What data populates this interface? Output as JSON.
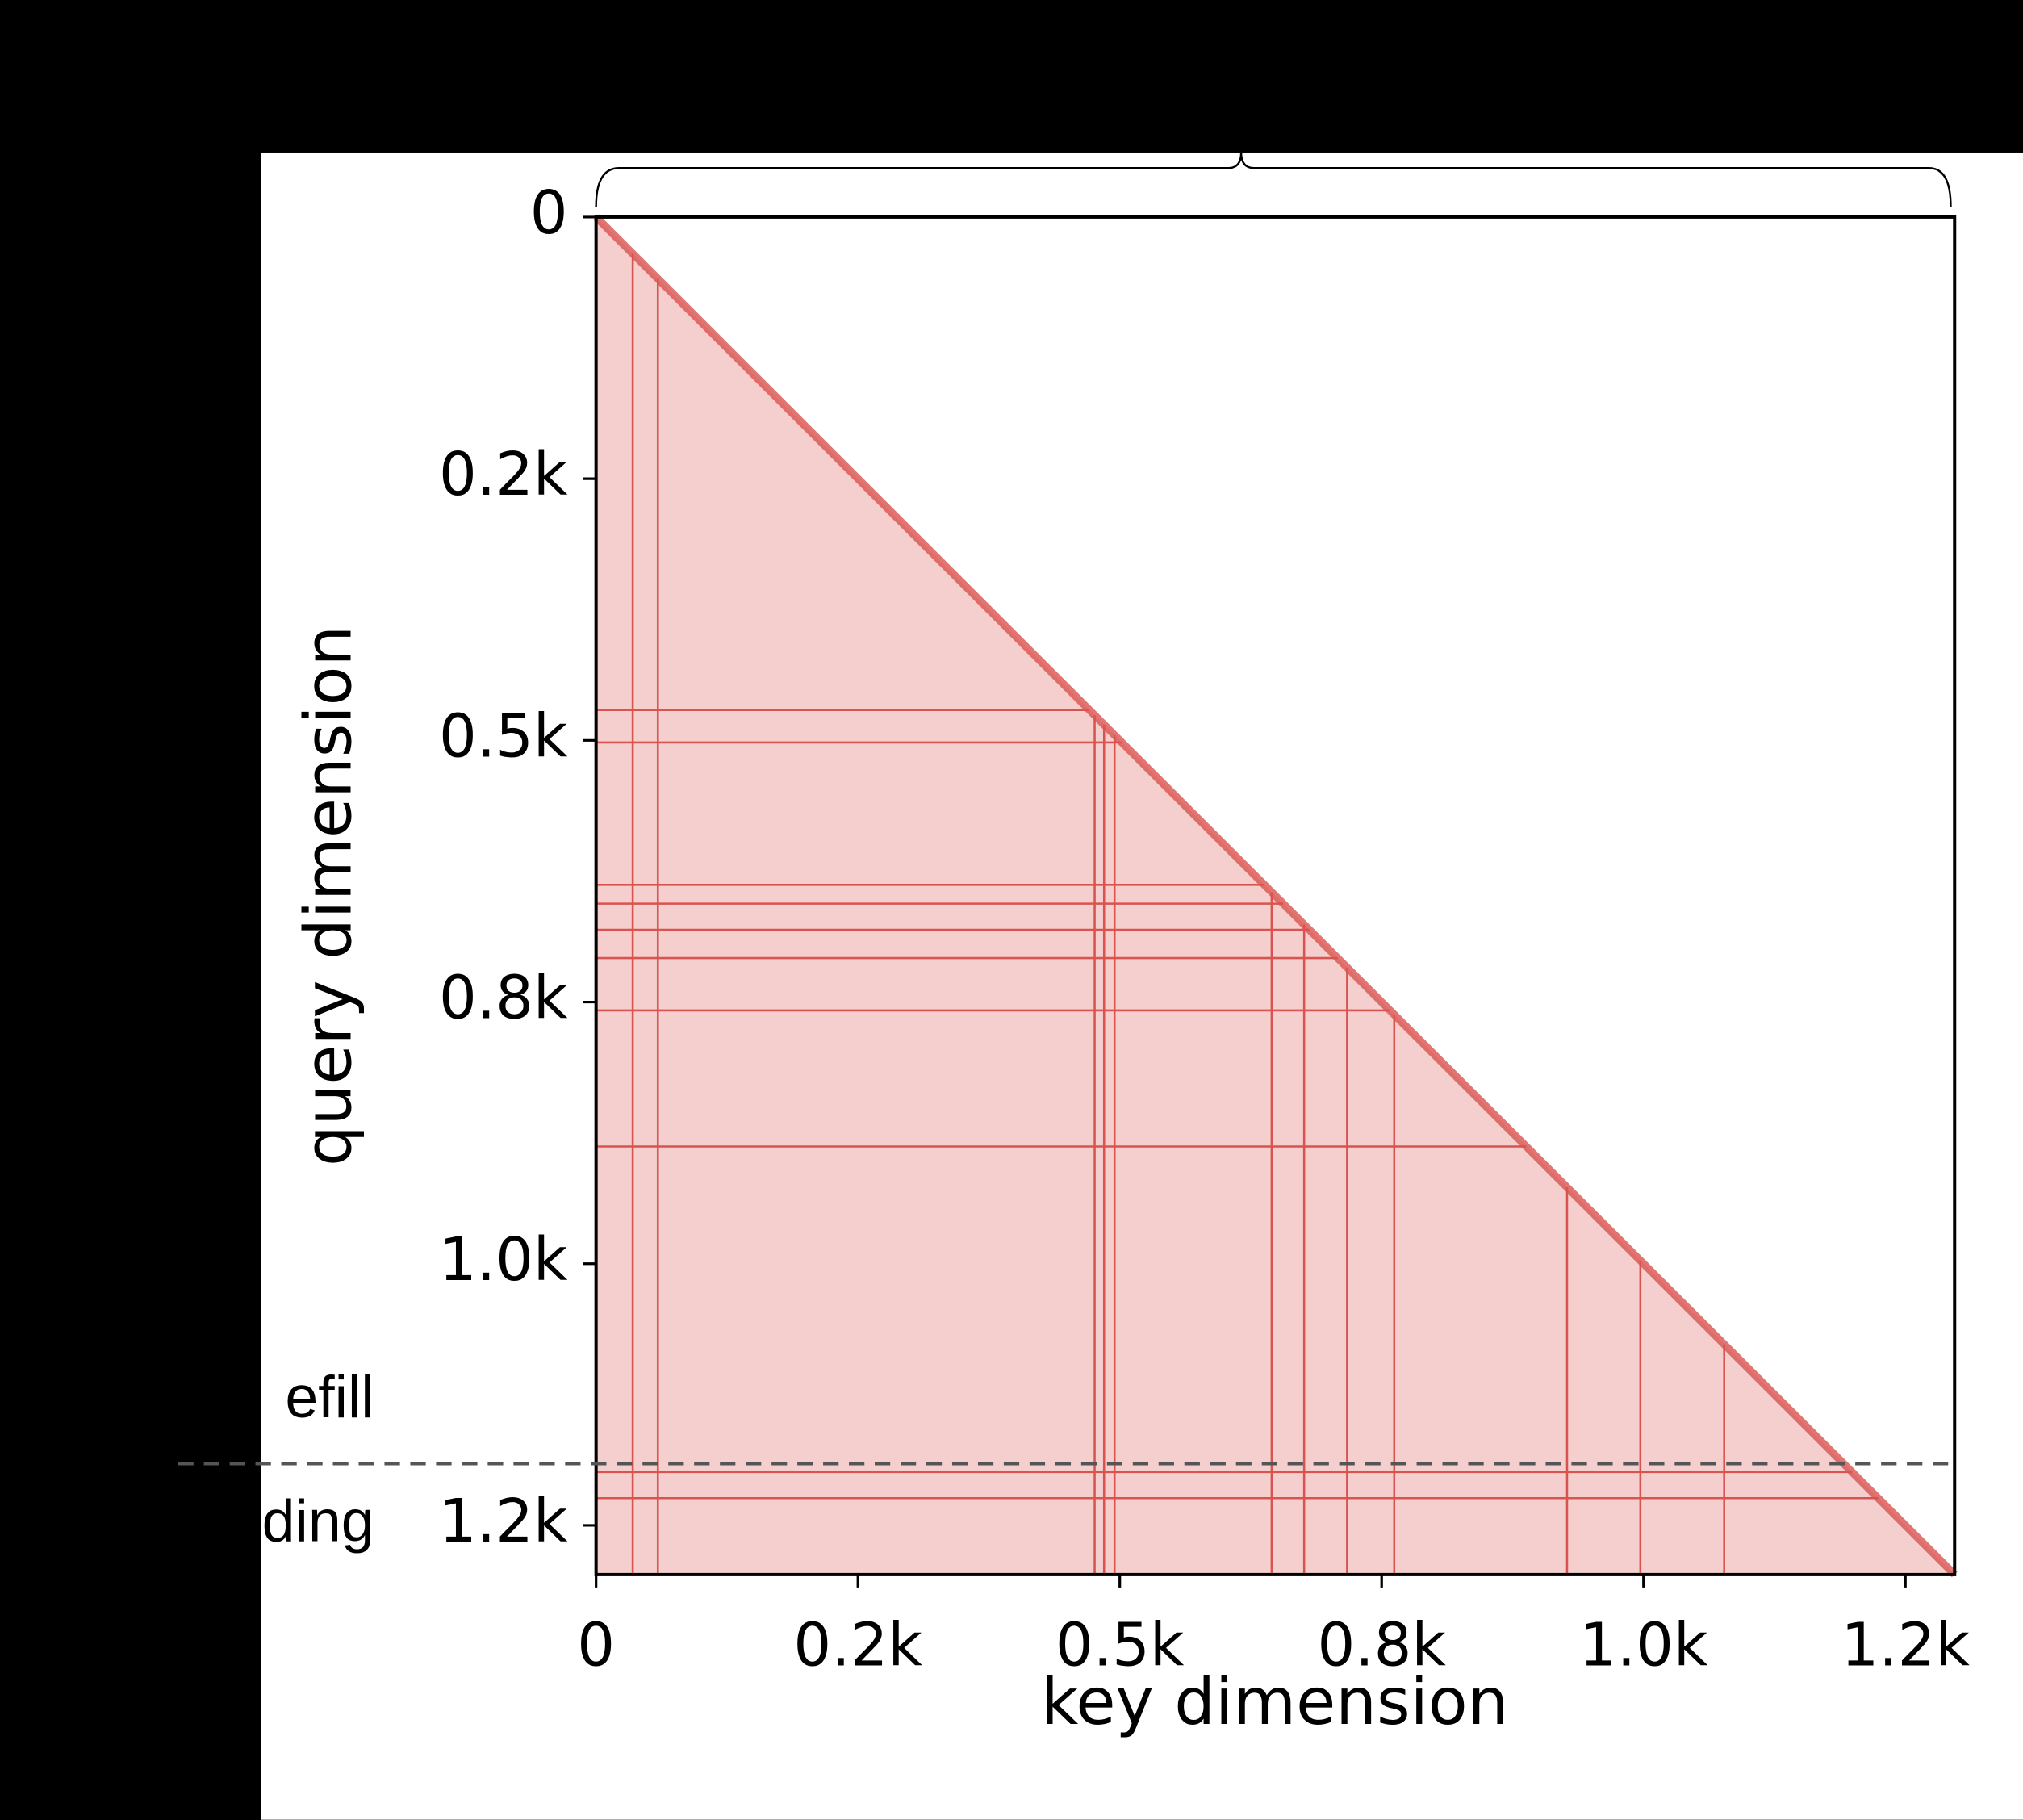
{
  "chart_data": {
    "type": "heatmap",
    "x_label": "key dimension",
    "y_label": "query dimension",
    "xlim": [
      0,
      1297
    ],
    "ylim": [
      0,
      1297
    ],
    "y_inverted": true,
    "xticks": [
      0,
      {
        "value": 250,
        "label": "0.2k"
      },
      {
        "value": 500,
        "label": "0.5k"
      },
      {
        "value": 750,
        "label": "0.8k"
      },
      {
        "value": 1000,
        "label": "1.0k"
      },
      {
        "value": 1250,
        "label": "1.2k"
      }
    ],
    "yticks": [
      0,
      {
        "value": 250,
        "label": "0.2k"
      },
      {
        "value": 500,
        "label": "0.5k"
      },
      {
        "value": 750,
        "label": "0.8k"
      },
      {
        "value": 1000,
        "label": "1.0k"
      },
      {
        "value": 1250,
        "label": "1.2k"
      }
    ],
    "causal_mask": true,
    "color": "#d9534f",
    "dense_columns": [
      35,
      59,
      476,
      485,
      495,
      645,
      676,
      717,
      762,
      927,
      997,
      1077
    ],
    "dense_rows": [
      471,
      502,
      638,
      656,
      681,
      708,
      758,
      888,
      1199,
      1224
    ],
    "phase_split": 1191,
    "phase_labels": [
      "efill",
      "ding"
    ]
  }
}
